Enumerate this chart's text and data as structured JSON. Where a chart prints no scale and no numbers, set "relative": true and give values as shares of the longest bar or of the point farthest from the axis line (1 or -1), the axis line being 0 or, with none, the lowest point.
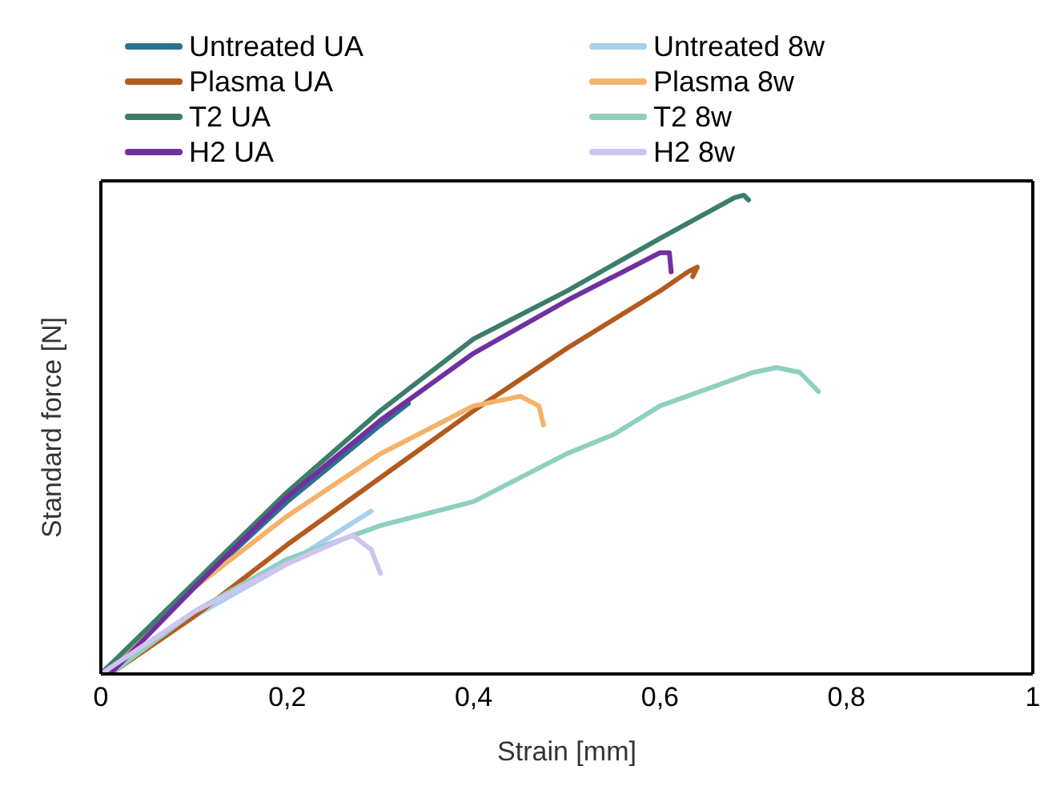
{
  "chart_data": {
    "type": "line",
    "xlabel": "Strain [mm]",
    "ylabel": "Standard force [N]",
    "relative": true,
    "xlim": [
      0,
      1
    ],
    "xticks": [
      {
        "value": 0,
        "label": "0"
      },
      {
        "value": 0.2,
        "label": "0,2"
      },
      {
        "value": 0.4,
        "label": "0,4"
      },
      {
        "value": 0.6,
        "label": "0,6"
      },
      {
        "value": 0.8,
        "label": "0,8"
      },
      {
        "value": 1,
        "label": "1"
      }
    ],
    "legend": "top",
    "marker": "none",
    "line_style": "solid",
    "series": [
      {
        "name": "Untreated UA",
        "color": "#2e6f8e",
        "x": [
          0,
          0.1,
          0.2,
          0.3,
          0.33
        ],
        "values": [
          0,
          0.18,
          0.36,
          0.52,
          0.565
        ]
      },
      {
        "name": "Untreated 8w",
        "color": "#a9d0ee",
        "x": [
          0,
          0.1,
          0.2,
          0.29
        ],
        "values": [
          0,
          0.12,
          0.23,
          0.34
        ]
      },
      {
        "name": "Plasma UA",
        "color": "#b35a1f",
        "x": [
          0.01,
          0.1,
          0.2,
          0.3,
          0.4,
          0.5,
          0.6,
          0.63,
          0.64,
          0.635
        ],
        "values": [
          0,
          0.12,
          0.27,
          0.41,
          0.55,
          0.68,
          0.8,
          0.84,
          0.85,
          0.83
        ]
      },
      {
        "name": "Plasma 8w",
        "color": "#f4b26a",
        "x": [
          0,
          0.1,
          0.2,
          0.3,
          0.4,
          0.45,
          0.47,
          0.475
        ],
        "values": [
          0,
          0.18,
          0.33,
          0.46,
          0.56,
          0.58,
          0.56,
          0.52
        ]
      },
      {
        "name": "T2 UA",
        "color": "#3c7d6b",
        "x": [
          0,
          0.1,
          0.2,
          0.3,
          0.4,
          0.5,
          0.6,
          0.68,
          0.69,
          0.695
        ],
        "values": [
          0,
          0.19,
          0.38,
          0.55,
          0.7,
          0.8,
          0.91,
          0.995,
          1,
          0.99
        ]
      },
      {
        "name": "T2 8w",
        "color": "#8fcfc0",
        "x": [
          0.01,
          0.1,
          0.2,
          0.3,
          0.4,
          0.5,
          0.55,
          0.6,
          0.7,
          0.725,
          0.75,
          0.77
        ],
        "values": [
          0,
          0.13,
          0.24,
          0.31,
          0.36,
          0.46,
          0.5,
          0.56,
          0.63,
          0.64,
          0.63,
          0.59
        ]
      },
      {
        "name": "H2 UA",
        "color": "#7030a0",
        "x": [
          0.01,
          0.1,
          0.2,
          0.3,
          0.4,
          0.5,
          0.6,
          0.61,
          0.612
        ],
        "values": [
          0,
          0.18,
          0.37,
          0.53,
          0.67,
          0.78,
          0.88,
          0.88,
          0.84
        ]
      },
      {
        "name": "H2 8w",
        "color": "#cfc4ef",
        "x": [
          0,
          0.1,
          0.2,
          0.27,
          0.29,
          0.3
        ],
        "values": [
          0,
          0.13,
          0.23,
          0.29,
          0.26,
          0.21
        ]
      }
    ]
  }
}
